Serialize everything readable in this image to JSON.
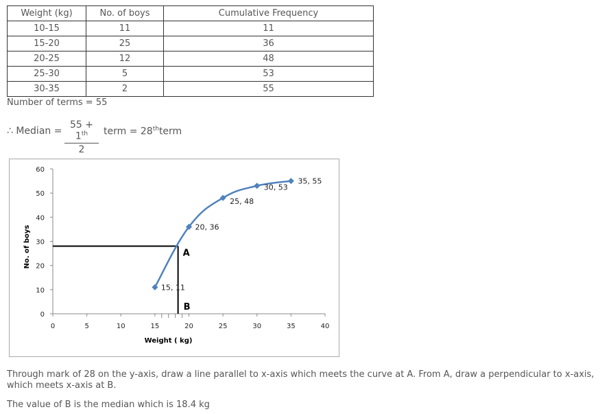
{
  "table": {
    "headers": [
      "Weight (kg)",
      "No. of boys",
      "Cumulative Frequency"
    ],
    "rows": [
      [
        "10-15",
        "11",
        "11"
      ],
      [
        "15-20",
        "25",
        "36"
      ],
      [
        "20-25",
        "12",
        "48"
      ],
      [
        "25-30",
        "5",
        "53"
      ],
      [
        "30-35",
        "2",
        "55"
      ]
    ]
  },
  "number_of_terms": "Number of terms = 55",
  "median": {
    "prefix": "∴ Median =",
    "numerator": "55 + 1",
    "numerator_sup": "th",
    "denominator": "2",
    "middle": "term = 28",
    "middle_sup": "th",
    "suffix": "term"
  },
  "chart_data": {
    "type": "line",
    "xlabel": "Weight ( kg)",
    "ylabel": "No. of boys",
    "xlim": [
      0,
      40
    ],
    "ylim": [
      0,
      60
    ],
    "x_ticks": [
      0,
      5,
      10,
      15,
      20,
      25,
      30,
      35,
      40
    ],
    "y_ticks": [
      0,
      10,
      20,
      30,
      40,
      50,
      60
    ],
    "grid": false,
    "series": [
      {
        "points": [
          {
            "x": 15,
            "y": 11,
            "label": "15, 11"
          },
          {
            "x": 20,
            "y": 36,
            "label": "20, 36"
          },
          {
            "x": 25,
            "y": 48,
            "label": "25, 48"
          },
          {
            "x": 30,
            "y": 53,
            "label": "30, 53"
          },
          {
            "x": 35,
            "y": 55,
            "label": "35, 55"
          }
        ]
      }
    ],
    "construction": {
      "y_value": 28,
      "x_value": 18.4,
      "point_a_label": "A",
      "point_b_label": "B"
    },
    "colors": {
      "series": "#4f81bd",
      "construction": "#000000"
    }
  },
  "explanation": "Through mark of 28 on the y-axis, draw a line parallel to x-axis which meets the curve at A. From A, draw a perpendicular to x-axis, which meets x-axis at B.",
  "conclusion": "The value of B is the median which is 18.4 kg"
}
